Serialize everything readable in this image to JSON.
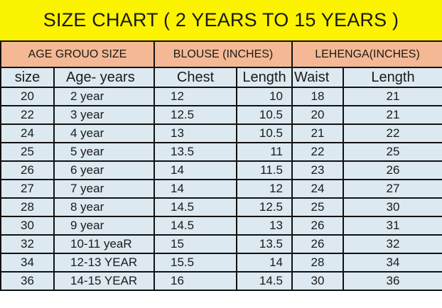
{
  "title": "SIZE CHART ( 2 YEARS TO 15 YEARS )",
  "colors": {
    "title_bg": "#fbf300",
    "group_header_bg": "#f4b994",
    "cell_bg": "#dde9f0",
    "border": "#111111"
  },
  "group_headers": [
    "AGE GROUO SIZE",
    "BLOUSE (INCHES)",
    "LEHENGA(INCHES)"
  ],
  "columns": [
    "size",
    "Age-  years",
    "Chest",
    "Length",
    "Waist",
    "Length"
  ],
  "rows": [
    [
      "20",
      "2 year",
      "12",
      "10",
      "18",
      "21"
    ],
    [
      "22",
      "3 year",
      "12.5",
      "10.5",
      "20",
      "21"
    ],
    [
      "24",
      "4 year",
      "13",
      "10.5",
      "21",
      "22"
    ],
    [
      "25",
      "5 year",
      "13.5",
      "11",
      "22",
      "25"
    ],
    [
      "26",
      "6 year",
      "14",
      "11.5",
      "23",
      "26"
    ],
    [
      "27",
      "7 year",
      "14",
      "12",
      "24",
      "27"
    ],
    [
      "28",
      "8 year",
      "14.5",
      "12.5",
      "25",
      "30"
    ],
    [
      "30",
      "9 year",
      "14.5",
      "13",
      "26",
      "31"
    ],
    [
      "32",
      "10-11 yeaR",
      "15",
      "13.5",
      "26",
      "32"
    ],
    [
      "34",
      "12-13 YEAR",
      "15.5",
      "14",
      "28",
      "34"
    ],
    [
      "36",
      "14-15 YEAR",
      "16",
      "14.5",
      "30",
      "36"
    ]
  ]
}
